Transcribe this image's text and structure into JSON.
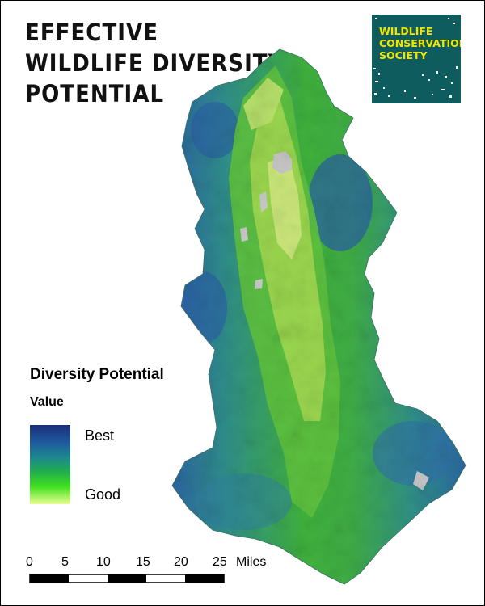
{
  "title": {
    "lines": [
      "EFFECTIVE",
      "WILDLIFE DIVERSITY",
      "POTENTIAL"
    ]
  },
  "logo": {
    "lines": [
      "WILDLIFE",
      "CONSERVATION",
      "SOCIETY"
    ],
    "background": "#0f5c5e",
    "text_color": "#f2e600"
  },
  "legend": {
    "title": "Diversity Potential",
    "subtitle": "Value",
    "high_label": "Best",
    "low_label": "Good",
    "colors": [
      "#1a2e78",
      "#1e5aa0",
      "#1e8a8c",
      "#22b04a",
      "#41e020",
      "#eaff90"
    ]
  },
  "scale_bar": {
    "ticks": [
      "0",
      "5",
      "10",
      "15",
      "20",
      "25"
    ],
    "units": "Miles"
  },
  "map": {
    "colors": {
      "high": "#2a5ea6",
      "mid": "#2f8f8a",
      "medium_low": "#3fb23c",
      "low": "#8fd64a",
      "valley": "#cbe87a",
      "developed": "#c8c8c8"
    }
  }
}
